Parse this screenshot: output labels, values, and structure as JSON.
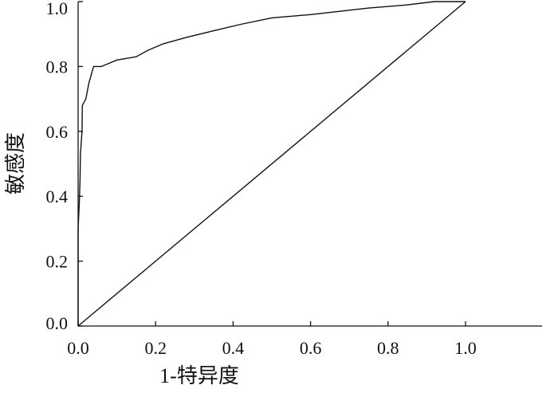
{
  "chart_data": {
    "type": "line",
    "xlabel": "1-特异度",
    "ylabel": "敏感度",
    "xlim": [
      0,
      1.25
    ],
    "ylim": [
      0,
      1.0
    ],
    "x_ticks": [
      0.0,
      0.2,
      0.4,
      0.6,
      0.8,
      1.0
    ],
    "x_tick_labels": [
      "0.0",
      "0.2",
      "0.4",
      "0.6",
      "0.8",
      "1.0"
    ],
    "y_ticks": [
      0.0,
      0.2,
      0.4,
      0.6,
      0.8,
      1.0
    ],
    "y_tick_labels": [
      "0.0",
      "0.2",
      "0.4",
      "0.6",
      "0.8",
      "1.0"
    ],
    "grid": false,
    "series": [
      {
        "style": "roc-curve",
        "color": "#111111",
        "points": [
          [
            0.0,
            0.0
          ],
          [
            0.0,
            0.3
          ],
          [
            0.003,
            0.38
          ],
          [
            0.005,
            0.45
          ],
          [
            0.006,
            0.53
          ],
          [
            0.01,
            0.6
          ],
          [
            0.011,
            0.68
          ],
          [
            0.02,
            0.7
          ],
          [
            0.028,
            0.75
          ],
          [
            0.04,
            0.8
          ],
          [
            0.06,
            0.8
          ],
          [
            0.1,
            0.82
          ],
          [
            0.15,
            0.83
          ],
          [
            0.18,
            0.85
          ],
          [
            0.22,
            0.87
          ],
          [
            0.28,
            0.89
          ],
          [
            0.35,
            0.91
          ],
          [
            0.42,
            0.93
          ],
          [
            0.5,
            0.95
          ],
          [
            0.6,
            0.96
          ],
          [
            0.75,
            0.98
          ],
          [
            0.85,
            0.99
          ],
          [
            0.92,
            1.0
          ],
          [
            1.0,
            1.0
          ]
        ]
      },
      {
        "style": "diagonal-reference",
        "color": "#111111",
        "points": [
          [
            0.0,
            0.0
          ],
          [
            1.0,
            1.0
          ]
        ]
      }
    ]
  }
}
